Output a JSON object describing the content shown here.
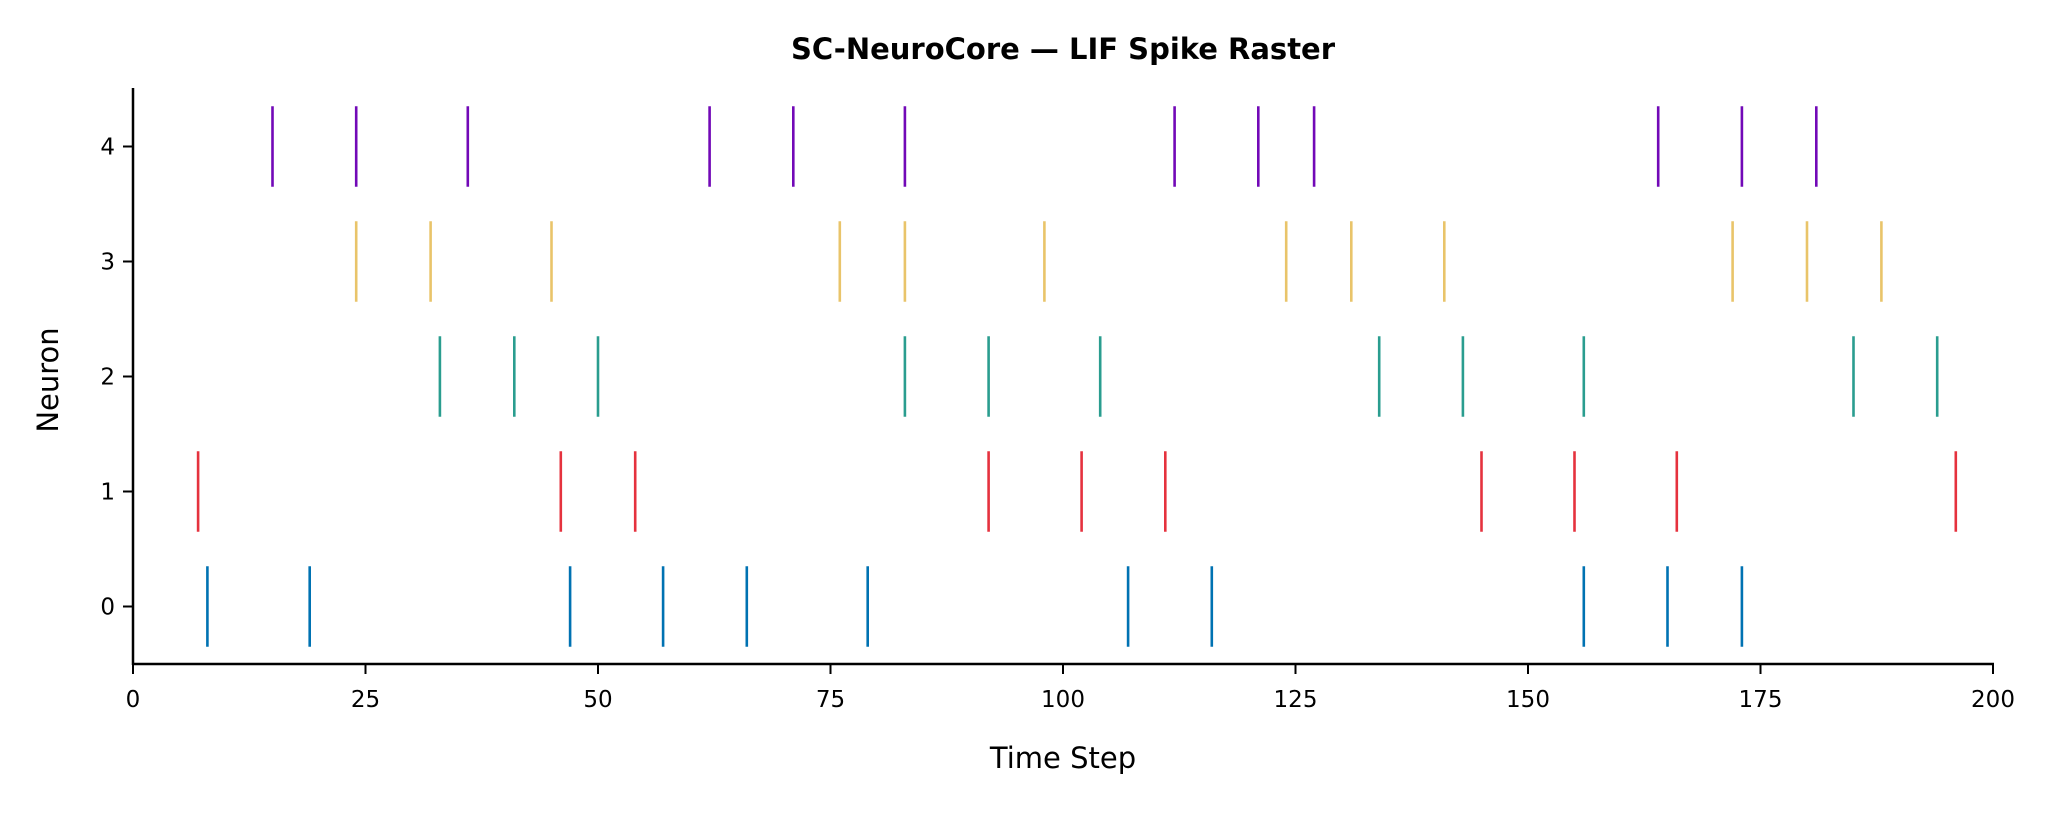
{
  "chart_data": {
    "type": "raster",
    "title": "SC-NeuroCore — LIF Spike Raster",
    "xlabel": "Time Step",
    "ylabel": "Neuron",
    "xlim": [
      0,
      200
    ],
    "ylim": [
      -0.5,
      4.5
    ],
    "xticks": [
      0,
      25,
      50,
      75,
      100,
      125,
      150,
      175,
      200
    ],
    "yticks": [
      0,
      1,
      2,
      3,
      4
    ],
    "grid": false,
    "series": [
      {
        "neuron": 0,
        "color": "#0072B2",
        "spikes": [
          8,
          19,
          47,
          57,
          66,
          79,
          107,
          116,
          156,
          165,
          173
        ]
      },
      {
        "neuron": 1,
        "color": "#E5323E",
        "spikes": [
          7,
          46,
          54,
          92,
          102,
          111,
          145,
          155,
          166,
          196
        ]
      },
      {
        "neuron": 2,
        "color": "#2A9D8F",
        "spikes": [
          33,
          41,
          50,
          83,
          92,
          104,
          134,
          143,
          156,
          185,
          194
        ]
      },
      {
        "neuron": 3,
        "color": "#E9C46A",
        "spikes": [
          24,
          32,
          45,
          76,
          83,
          98,
          124,
          131,
          141,
          172,
          180,
          188
        ]
      },
      {
        "neuron": 4,
        "color": "#7209B7",
        "spikes": [
          15,
          24,
          36,
          62,
          71,
          83,
          112,
          121,
          127,
          164,
          173,
          181
        ]
      }
    ]
  }
}
